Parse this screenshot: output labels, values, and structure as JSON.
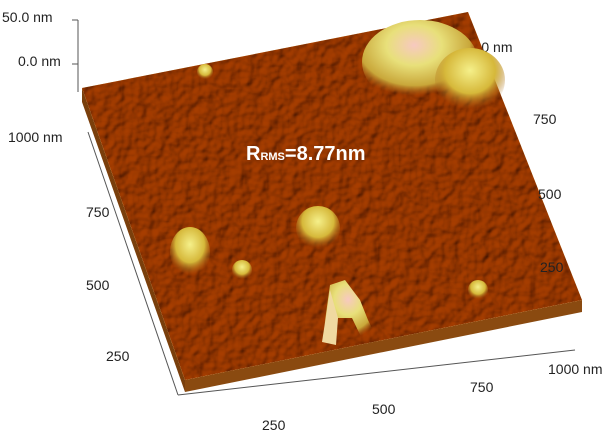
{
  "z_axis": {
    "ticks": [
      "50.0 nm",
      "0.0 nm"
    ]
  },
  "left_axis": {
    "ticks": [
      "1000 nm",
      "750",
      "500",
      "250"
    ]
  },
  "bottom_axis": {
    "ticks": [
      "250",
      "500",
      "750",
      "1000 nm"
    ]
  },
  "right_axis": {
    "ticks": [
      "1000 nm",
      "750",
      "500",
      "250"
    ]
  },
  "annotation": {
    "symbol": "R",
    "subscript": "RMS",
    "text": "=8.77nm"
  }
}
